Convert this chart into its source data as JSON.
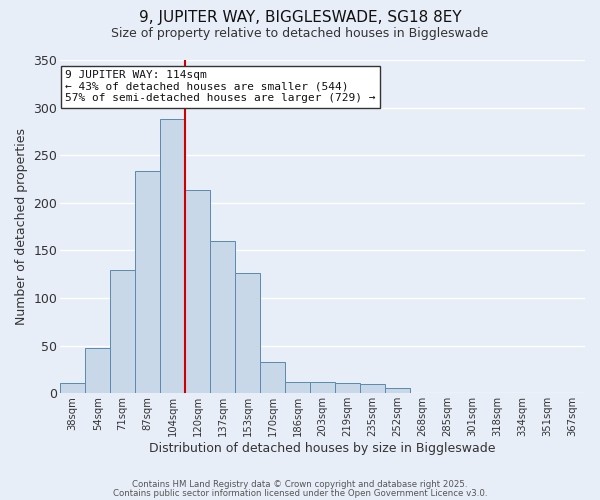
{
  "title": "9, JUPITER WAY, BIGGLESWADE, SG18 8EY",
  "subtitle": "Size of property relative to detached houses in Biggleswade",
  "xlabel": "Distribution of detached houses by size in Biggleswade",
  "ylabel": "Number of detached properties",
  "bar_color": "#c8d8e8",
  "bar_edgecolor": "#5a8ab0",
  "background_color": "#e8eef8",
  "grid_color": "white",
  "bin_labels": [
    "38sqm",
    "54sqm",
    "71sqm",
    "87sqm",
    "104sqm",
    "120sqm",
    "137sqm",
    "153sqm",
    "170sqm",
    "186sqm",
    "203sqm",
    "219sqm",
    "235sqm",
    "252sqm",
    "268sqm",
    "285sqm",
    "301sqm",
    "318sqm",
    "334sqm",
    "351sqm",
    "367sqm"
  ],
  "bar_values": [
    11,
    48,
    129,
    233,
    288,
    213,
    160,
    126,
    33,
    12,
    12,
    11,
    10,
    6,
    0,
    0,
    0,
    0,
    0,
    0,
    0
  ],
  "ylim": [
    0,
    350
  ],
  "yticks": [
    0,
    50,
    100,
    150,
    200,
    250,
    300,
    350
  ],
  "vline_pos": 4.5,
  "vline_color": "#cc0000",
  "annotation_title": "9 JUPITER WAY: 114sqm",
  "annotation_line1": "← 43% of detached houses are smaller (544)",
  "annotation_line2": "57% of semi-detached houses are larger (729) →",
  "footnote1": "Contains HM Land Registry data © Crown copyright and database right 2025.",
  "footnote2": "Contains public sector information licensed under the Open Government Licence v3.0."
}
